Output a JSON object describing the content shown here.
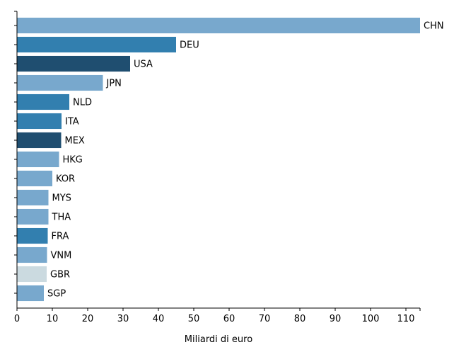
{
  "chart_data": {
    "type": "bar",
    "orientation": "horizontal",
    "title": "",
    "xlabel": "Miliardi di euro",
    "ylabel": "",
    "xlim": [
      0,
      114
    ],
    "x_ticks": [
      0,
      10,
      20,
      30,
      40,
      50,
      60,
      70,
      80,
      90,
      100,
      110
    ],
    "grid": false,
    "legend": "none",
    "colors": {
      "light": "#78a8cd",
      "medium": "#327faf",
      "dark": "#1f4e70",
      "pale": "#cbdae0"
    },
    "bars": [
      {
        "category": "CHN",
        "value": 114,
        "color": "#78a8cd"
      },
      {
        "category": "DEU",
        "value": 45,
        "color": "#327faf"
      },
      {
        "category": "USA",
        "value": 32,
        "color": "#1f4e70"
      },
      {
        "category": "JPN",
        "value": 24.3,
        "color": "#78a8cd"
      },
      {
        "category": "NLD",
        "value": 14.8,
        "color": "#327faf"
      },
      {
        "category": "ITA",
        "value": 12.6,
        "color": "#327faf"
      },
      {
        "category": "MEX",
        "value": 12.5,
        "color": "#1f4e70"
      },
      {
        "category": "HKG",
        "value": 11.9,
        "color": "#78a8cd"
      },
      {
        "category": "KOR",
        "value": 10.0,
        "color": "#78a8cd"
      },
      {
        "category": "MYS",
        "value": 8.9,
        "color": "#78a8cd"
      },
      {
        "category": "THA",
        "value": 8.9,
        "color": "#78a8cd"
      },
      {
        "category": "FRA",
        "value": 8.7,
        "color": "#327faf"
      },
      {
        "category": "VNM",
        "value": 8.5,
        "color": "#78a8cd"
      },
      {
        "category": "GBR",
        "value": 8.4,
        "color": "#cbdae0"
      },
      {
        "category": "SGP",
        "value": 7.6,
        "color": "#78a8cd"
      }
    ]
  }
}
